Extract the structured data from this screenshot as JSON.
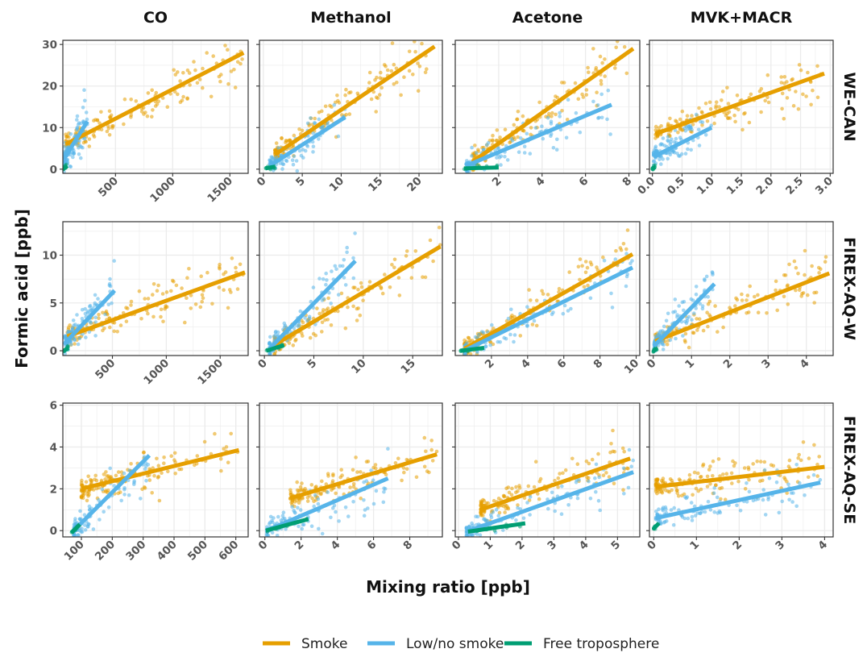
{
  "figure": {
    "ylabel": "Formic acid [ppb]",
    "xlabel": "Mixing ratio [ppb]",
    "columns": [
      "CO",
      "Methanol",
      "Acetone",
      "MVK+MACR"
    ],
    "rows": [
      "WE-CAN",
      "FIREX-AQ-W",
      "FIREX-AQ-SE"
    ]
  },
  "legend": {
    "items": [
      {
        "label": "Smoke",
        "color": "#E69F00"
      },
      {
        "label": "Low/no smoke",
        "color": "#56B4E9"
      },
      {
        "label": "Free troposphere",
        "color": "#009E73"
      }
    ]
  },
  "chart_data": [
    {
      "type": "scatter",
      "row": "WE-CAN",
      "column": "CO",
      "xlim": [
        40,
        1660
      ],
      "ylim": [
        -1,
        31
      ],
      "xticks": [
        500,
        1000,
        1500
      ],
      "yticks": [
        0,
        10,
        20,
        30
      ],
      "fits": [
        {
          "name": "Smoke",
          "x": [
            65,
            1620
          ],
          "y": [
            6,
            28
          ]
        },
        {
          "name": "Low/no smoke",
          "x": [
            50,
            255
          ],
          "y": [
            2.5,
            11.5
          ]
        },
        {
          "name": "Free troposphere",
          "x": [
            45,
            80
          ],
          "y": [
            0.1,
            0.8
          ]
        }
      ]
    },
    {
      "type": "scatter",
      "row": "WE-CAN",
      "column": "Methanol",
      "xlim": [
        -0.5,
        23
      ],
      "ylim": [
        -1,
        31
      ],
      "xticks": [
        0,
        5,
        10,
        15,
        20
      ],
      "yticks": [
        0,
        10,
        20,
        30
      ],
      "fits": [
        {
          "name": "Smoke",
          "x": [
            1.5,
            22
          ],
          "y": [
            3.5,
            29.5
          ]
        },
        {
          "name": "Low/no smoke",
          "x": [
            0.8,
            10.5
          ],
          "y": [
            0.8,
            12.5
          ]
        },
        {
          "name": "Free troposphere",
          "x": [
            0.3,
            1.5
          ],
          "y": [
            0.2,
            0.6
          ]
        }
      ]
    },
    {
      "type": "scatter",
      "row": "WE-CAN",
      "column": "Acetone",
      "xlim": [
        0,
        8.5
      ],
      "ylim": [
        -1,
        31
      ],
      "xticks": [
        2,
        4,
        6,
        8
      ],
      "yticks": [
        0,
        10,
        20,
        30
      ],
      "fits": [
        {
          "name": "Smoke",
          "x": [
            0.8,
            8.2
          ],
          "y": [
            1.8,
            29
          ]
        },
        {
          "name": "Low/no smoke",
          "x": [
            0.5,
            7.2
          ],
          "y": [
            0.8,
            15.5
          ]
        },
        {
          "name": "Free troposphere",
          "x": [
            0.4,
            2
          ],
          "y": [
            0.2,
            0.4
          ]
        }
      ]
    },
    {
      "type": "scatter",
      "row": "WE-CAN",
      "column": "MVK+MACR",
      "xlim": [
        -0.05,
        3.05
      ],
      "ylim": [
        -1,
        31
      ],
      "xticks": [
        0.0,
        0.5,
        1.0,
        1.5,
        2.0,
        2.5,
        3.0
      ],
      "yticks": [
        0,
        10,
        20,
        30
      ],
      "fits": [
        {
          "name": "Smoke",
          "x": [
            0.05,
            2.9
          ],
          "y": [
            8.5,
            23
          ]
        },
        {
          "name": "Low/no smoke",
          "x": [
            0.02,
            1.0
          ],
          "y": [
            3,
            10
          ]
        },
        {
          "name": "Free troposphere",
          "x": [
            0,
            0.05
          ],
          "y": [
            0.2,
            0.5
          ]
        }
      ]
    },
    {
      "type": "scatter",
      "row": "FIREX-AQ-W",
      "column": "CO",
      "xlim": [
        40,
        1760
      ],
      "ylim": [
        -0.5,
        13.5
      ],
      "xticks": [
        500,
        1000,
        1500
      ],
      "yticks": [
        0,
        5,
        10
      ],
      "fits": [
        {
          "name": "Smoke",
          "x": [
            80,
            1730
          ],
          "y": [
            1.5,
            8.2
          ]
        },
        {
          "name": "Low/no smoke",
          "x": [
            60,
            520
          ],
          "y": [
            0.8,
            6.3
          ]
        },
        {
          "name": "Free troposphere",
          "x": [
            50,
            90
          ],
          "y": [
            0,
            0.3
          ]
        }
      ]
    },
    {
      "type": "scatter",
      "row": "FIREX-AQ-W",
      "column": "Methanol",
      "xlim": [
        -0.5,
        18
      ],
      "ylim": [
        -0.5,
        13.5
      ],
      "xticks": [
        0,
        5,
        10,
        15
      ],
      "yticks": [
        0,
        5,
        10
      ],
      "fits": [
        {
          "name": "Smoke",
          "x": [
            1,
            17.8
          ],
          "y": [
            0.6,
            10.9
          ]
        },
        {
          "name": "Low/no smoke",
          "x": [
            0.5,
            9.2
          ],
          "y": [
            0.2,
            9.4
          ]
        },
        {
          "name": "Free troposphere",
          "x": [
            0.2,
            2
          ],
          "y": [
            0,
            0.6
          ]
        }
      ]
    },
    {
      "type": "scatter",
      "row": "FIREX-AQ-W",
      "column": "Acetone",
      "xlim": [
        0,
        10.2
      ],
      "ylim": [
        -0.5,
        13.5
      ],
      "xticks": [
        2,
        4,
        6,
        8,
        10
      ],
      "yticks": [
        0,
        5,
        10
      ],
      "fits": [
        {
          "name": "Smoke",
          "x": [
            0.5,
            9.8
          ],
          "y": [
            0.2,
            10.1
          ]
        },
        {
          "name": "Low/no smoke",
          "x": [
            0.5,
            9.8
          ],
          "y": [
            0,
            8.7
          ]
        },
        {
          "name": "Free troposphere",
          "x": [
            0.3,
            1.6
          ],
          "y": [
            0,
            0.3
          ]
        }
      ]
    },
    {
      "type": "scatter",
      "row": "FIREX-AQ-W",
      "column": "MVK+MACR",
      "xlim": [
        -0.1,
        4.7
      ],
      "ylim": [
        -0.5,
        13.5
      ],
      "xticks": [
        0,
        1,
        2,
        3,
        4
      ],
      "yticks": [
        0,
        5,
        10
      ],
      "fits": [
        {
          "name": "Smoke",
          "x": [
            0.05,
            4.6
          ],
          "y": [
            1,
            8.1
          ]
        },
        {
          "name": "Low/no smoke",
          "x": [
            0.02,
            1.6
          ],
          "y": [
            0.5,
            7
          ]
        },
        {
          "name": "Free troposphere",
          "x": [
            0,
            0.1
          ],
          "y": [
            0,
            0.2
          ]
        }
      ]
    },
    {
      "type": "scatter",
      "row": "FIREX-AQ-SE",
      "column": "CO",
      "xlim": [
        40,
        640
      ],
      "ylim": [
        -0.3,
        6.1
      ],
      "xticks": [
        100,
        200,
        300,
        400,
        500,
        600
      ],
      "yticks": [
        0,
        2,
        4,
        6
      ],
      "fits": [
        {
          "name": "Smoke",
          "x": [
            100,
            610
          ],
          "y": [
            2,
            3.85
          ]
        },
        {
          "name": "Low/no smoke",
          "x": [
            75,
            320
          ],
          "y": [
            0,
            3.6
          ]
        },
        {
          "name": "Free troposphere",
          "x": [
            68,
            95
          ],
          "y": [
            -0.1,
            0.3
          ]
        }
      ]
    },
    {
      "type": "scatter",
      "row": "FIREX-AQ-SE",
      "column": "Methanol",
      "xlim": [
        -0.3,
        9.8
      ],
      "ylim": [
        -0.3,
        6.1
      ],
      "xticks": [
        0,
        2,
        4,
        6,
        8
      ],
      "yticks": [
        0,
        2,
        4,
        6
      ],
      "fits": [
        {
          "name": "Smoke",
          "x": [
            1.4,
            9.5
          ],
          "y": [
            1.55,
            3.65
          ]
        },
        {
          "name": "Low/no smoke",
          "x": [
            0.1,
            6.8
          ],
          "y": [
            0,
            2.5
          ]
        },
        {
          "name": "Free troposphere",
          "x": [
            0.05,
            2.4
          ],
          "y": [
            0,
            0.55
          ]
        }
      ]
    },
    {
      "type": "scatter",
      "row": "FIREX-AQ-SE",
      "column": "Acetone",
      "xlim": [
        -0.1,
        5.7
      ],
      "ylim": [
        -0.3,
        6.1
      ],
      "xticks": [
        0,
        1,
        2,
        3,
        4,
        5
      ],
      "yticks": [
        0,
        2,
        4,
        6
      ],
      "fits": [
        {
          "name": "Smoke",
          "x": [
            0.7,
            5.4
          ],
          "y": [
            1,
            3.45
          ]
        },
        {
          "name": "Low/no smoke",
          "x": [
            0.25,
            5.5
          ],
          "y": [
            -0.05,
            2.8
          ]
        },
        {
          "name": "Free troposphere",
          "x": [
            0.3,
            2.1
          ],
          "y": [
            -0.05,
            0.35
          ]
        }
      ]
    },
    {
      "type": "scatter",
      "row": "FIREX-AQ-SE",
      "column": "MVK+MACR",
      "xlim": [
        -0.1,
        4.2
      ],
      "ylim": [
        -0.3,
        6.1
      ],
      "xticks": [
        0,
        1,
        2,
        3,
        4
      ],
      "yticks": [
        0,
        2,
        4,
        6
      ],
      "fits": [
        {
          "name": "Smoke",
          "x": [
            0.05,
            4
          ],
          "y": [
            2.1,
            3.05
          ]
        },
        {
          "name": "Low/no smoke",
          "x": [
            0.05,
            3.9
          ],
          "y": [
            0.6,
            2.3
          ]
        },
        {
          "name": "Free troposphere",
          "x": [
            0,
            0.12
          ],
          "y": [
            0.1,
            0.35
          ]
        }
      ]
    }
  ]
}
